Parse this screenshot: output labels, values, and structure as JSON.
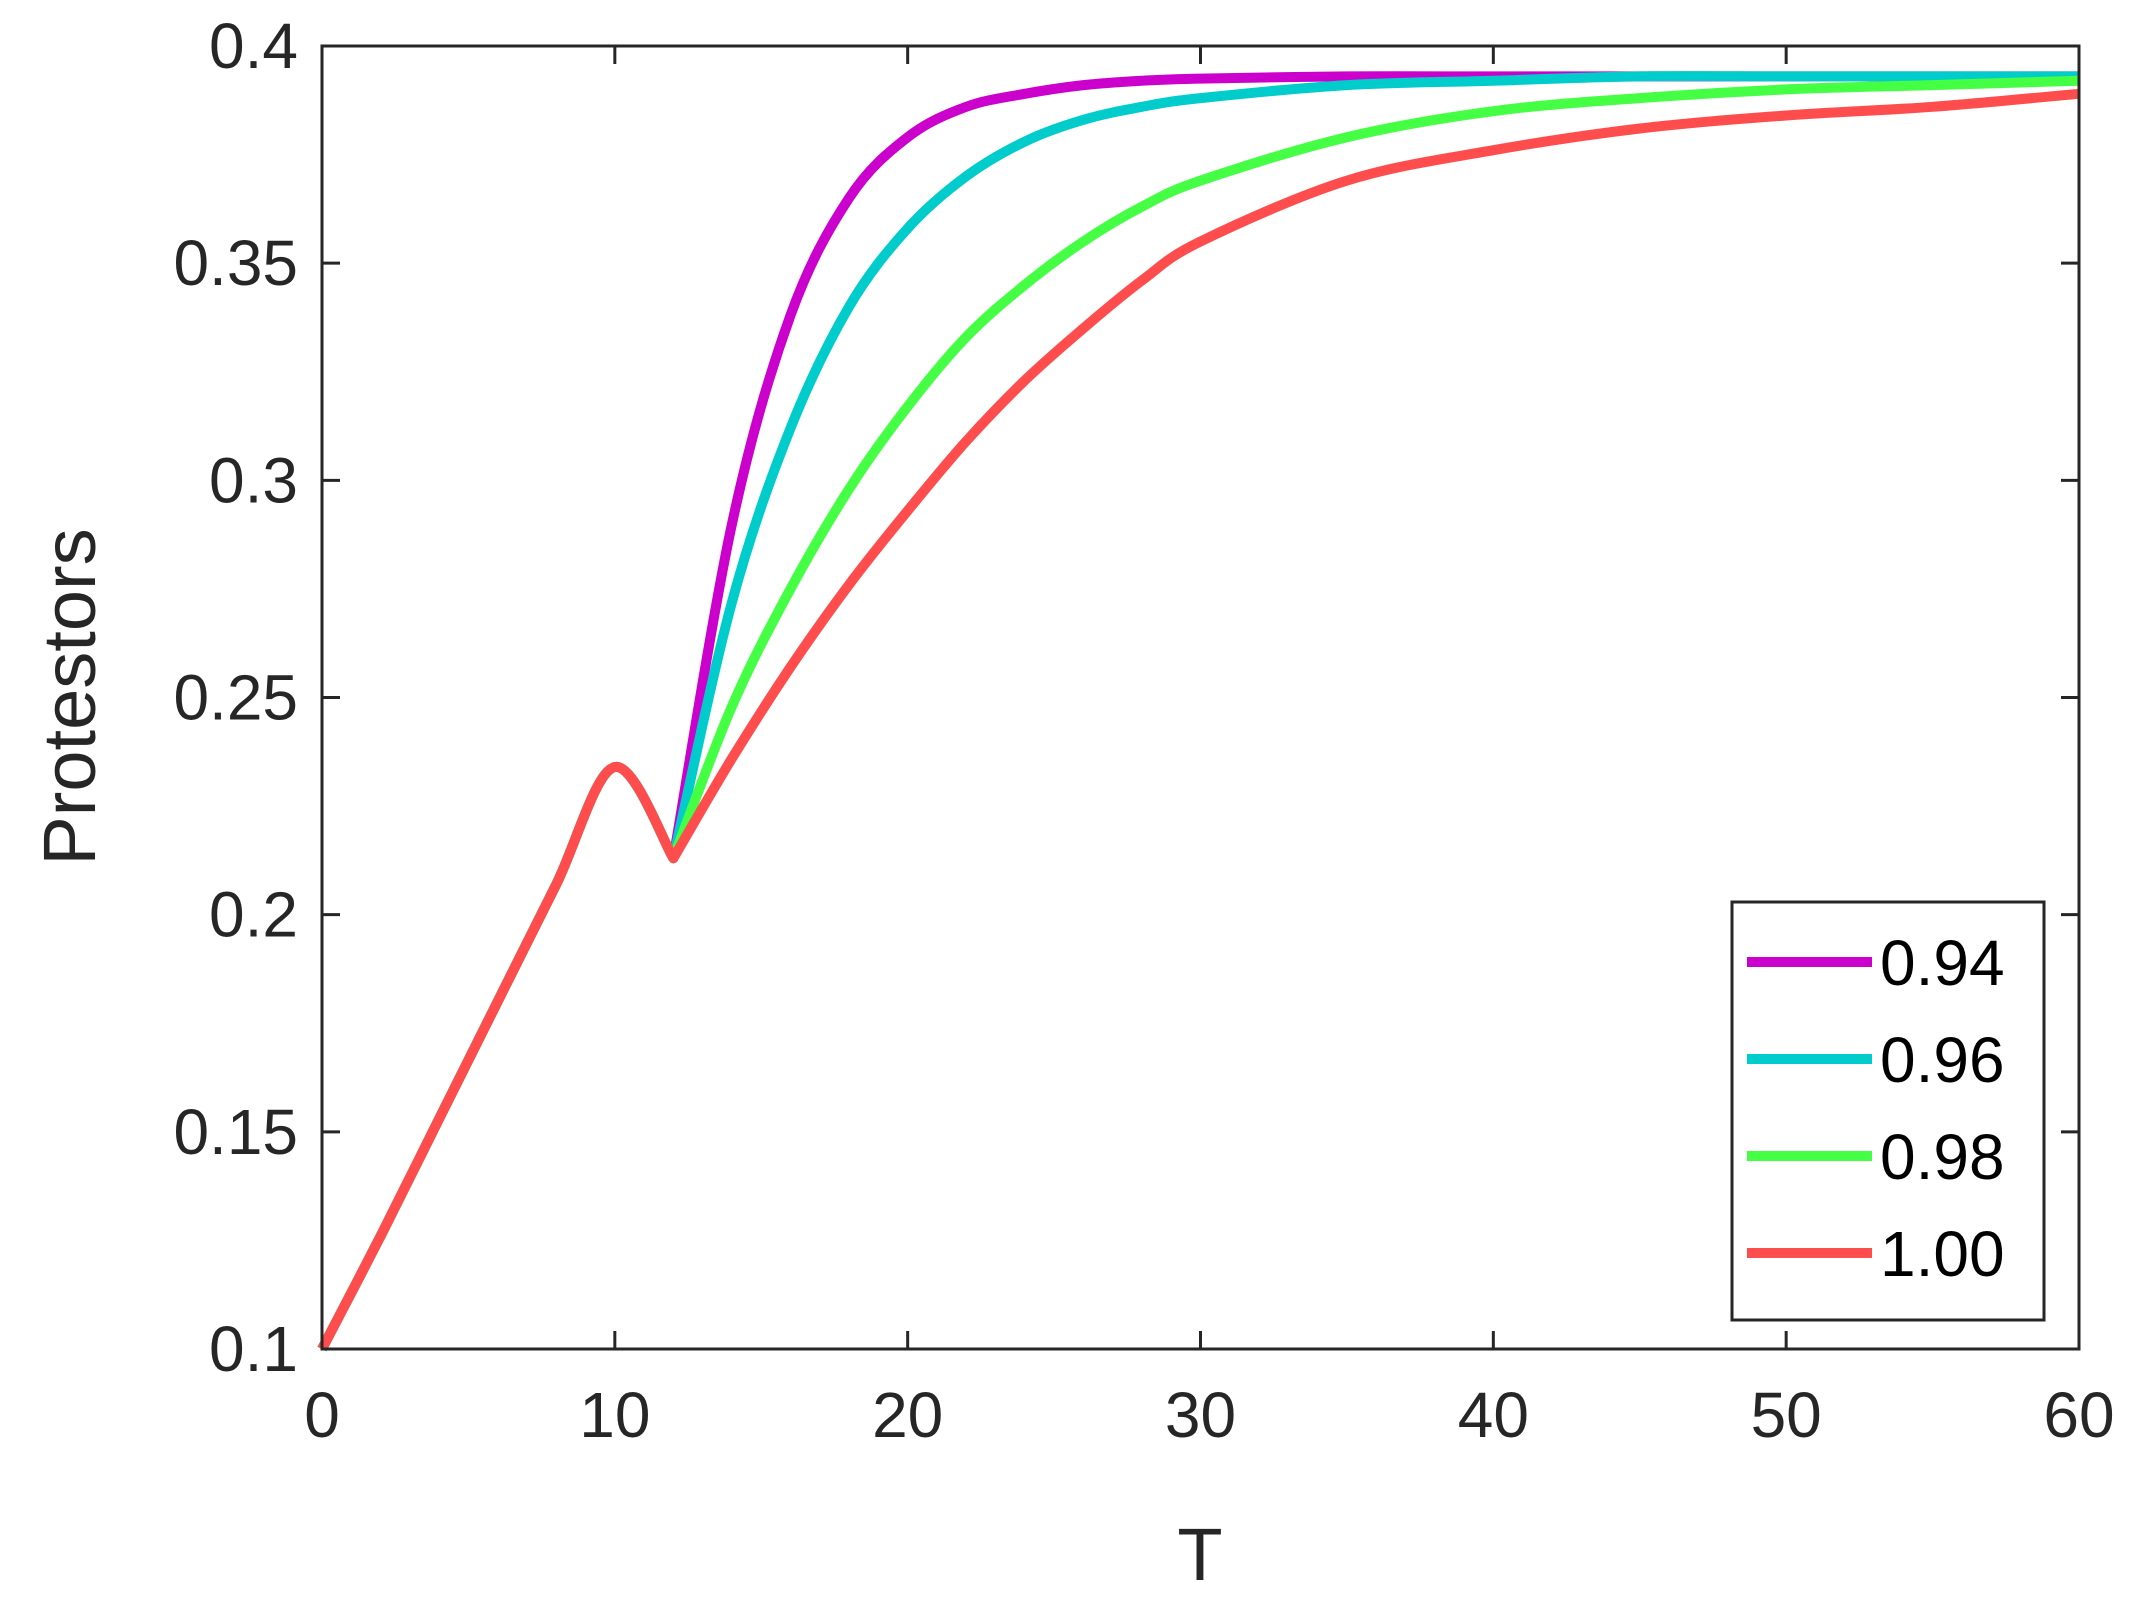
{
  "chart_data": {
    "type": "line",
    "xlabel": "T",
    "ylabel": "Protestors",
    "xlim": [
      0,
      60
    ],
    "ylim": [
      0.1,
      0.4
    ],
    "xticks": [
      0,
      10,
      20,
      30,
      40,
      50,
      60
    ],
    "xtick_labels": [
      "0",
      "10",
      "20",
      "30",
      "40",
      "50",
      "60"
    ],
    "yticks": [
      0.1,
      0.15,
      0.2,
      0.25,
      0.3,
      0.35,
      0.4
    ],
    "ytick_labels": [
      "0.1",
      "0.15",
      "0.2",
      "0.25",
      "0.3",
      "0.35",
      "0.4"
    ],
    "grid": false,
    "legend_position": "bottom-right",
    "x": [
      0,
      2,
      4,
      6,
      8,
      10,
      12,
      14,
      16,
      18,
      20,
      22,
      24,
      26,
      28,
      30,
      35,
      40,
      45,
      50,
      55,
      60
    ],
    "series": [
      {
        "name": "0.94",
        "color": "#cc00cc",
        "values": [
          0.1,
          0.126,
          0.153,
          0.18,
          0.207,
          0.234,
          0.213,
          0.29,
          0.338,
          0.365,
          0.379,
          0.386,
          0.389,
          0.391,
          0.392,
          0.3925,
          0.393,
          0.393,
          0.393,
          0.393,
          0.393,
          0.393
        ]
      },
      {
        "name": "0.96",
        "color": "#00cccc",
        "values": [
          0.1,
          0.126,
          0.153,
          0.18,
          0.207,
          0.234,
          0.213,
          0.272,
          0.312,
          0.34,
          0.358,
          0.37,
          0.378,
          0.383,
          0.386,
          0.388,
          0.391,
          0.392,
          0.393,
          0.393,
          0.393,
          0.393
        ]
      },
      {
        "name": "0.98",
        "color": "#44ff44",
        "values": [
          0.1,
          0.126,
          0.153,
          0.18,
          0.207,
          0.234,
          0.213,
          0.248,
          0.275,
          0.298,
          0.317,
          0.333,
          0.345,
          0.355,
          0.363,
          0.369,
          0.379,
          0.385,
          0.388,
          0.39,
          0.391,
          0.392
        ]
      },
      {
        "name": "1.00",
        "color": "#ff4d4d",
        "values": [
          0.1,
          0.126,
          0.153,
          0.18,
          0.207,
          0.234,
          0.213,
          0.236,
          0.257,
          0.276,
          0.293,
          0.309,
          0.323,
          0.335,
          0.346,
          0.355,
          0.369,
          0.376,
          0.381,
          0.384,
          0.386,
          0.389
        ]
      }
    ]
  }
}
